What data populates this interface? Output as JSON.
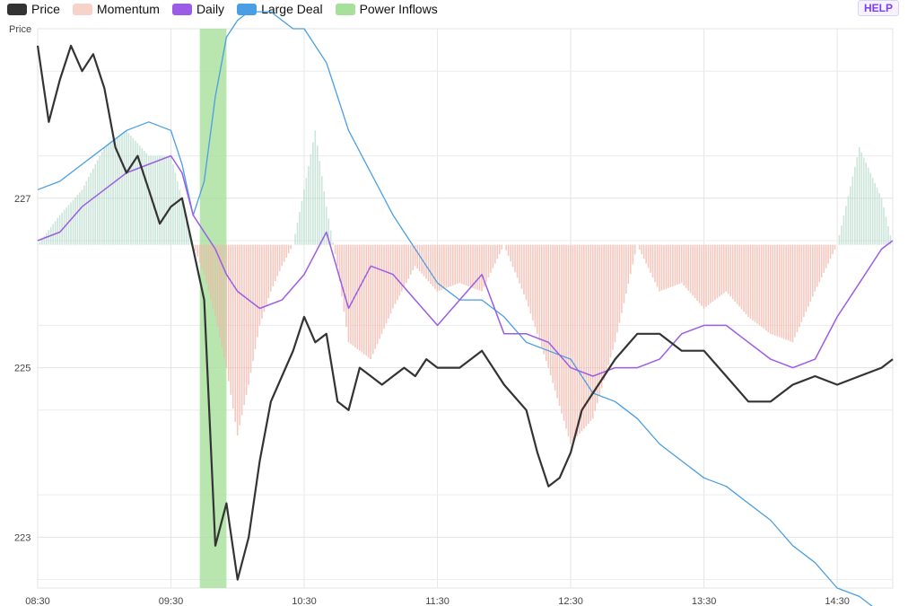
{
  "help_label": "HELP",
  "legend": [
    {
      "name": "Price",
      "color": "#333333"
    },
    {
      "name": "Momentum",
      "color": "#f6d2c8"
    },
    {
      "name": "Daily",
      "color": "#9b5de5"
    },
    {
      "name": "Large Deal",
      "color": "#4a9ee3"
    },
    {
      "name": "Power Inflows",
      "color": "#a6e09a"
    }
  ],
  "chart_data": {
    "type": "line",
    "ylabel": "Price",
    "ylim": [
      222.4,
      229.0
    ],
    "xlim": [
      "08:30",
      "14:55"
    ],
    "x_ticks": [
      "08:30",
      "09:30",
      "10:30",
      "11:30",
      "12:30",
      "13:30",
      "14:30"
    ],
    "y_ticks": [
      "223",
      "225",
      "227"
    ],
    "y_tick_values": [
      223,
      225,
      227
    ],
    "grid": true,
    "legend_position": "top-left",
    "power_inflows": [
      {
        "start": "09:43",
        "end": "09:55"
      }
    ],
    "momentum_baseline": 226.45,
    "series": [
      {
        "name": "Price",
        "color": "#333333",
        "x": [
          "08:30",
          "08:35",
          "08:40",
          "08:45",
          "08:50",
          "08:55",
          "09:00",
          "09:05",
          "09:10",
          "09:15",
          "09:20",
          "09:25",
          "09:30",
          "09:35",
          "09:40",
          "09:45",
          "09:50",
          "09:55",
          "10:00",
          "10:05",
          "10:10",
          "10:15",
          "10:20",
          "10:25",
          "10:30",
          "10:35",
          "10:40",
          "10:45",
          "10:50",
          "10:55",
          "11:00",
          "11:05",
          "11:10",
          "11:15",
          "11:20",
          "11:25",
          "11:30",
          "11:40",
          "11:50",
          "12:00",
          "12:10",
          "12:15",
          "12:20",
          "12:25",
          "12:30",
          "12:35",
          "12:40",
          "12:45",
          "12:50",
          "13:00",
          "13:10",
          "13:20",
          "13:30",
          "13:40",
          "13:50",
          "14:00",
          "14:05",
          "14:10",
          "14:20",
          "14:30",
          "14:40",
          "14:50",
          "14:55"
        ],
        "values": [
          228.8,
          227.9,
          228.4,
          228.8,
          228.5,
          228.7,
          228.3,
          227.6,
          227.3,
          227.5,
          227.1,
          226.7,
          226.9,
          227.0,
          226.4,
          225.8,
          222.9,
          223.4,
          222.5,
          223.0,
          223.9,
          224.6,
          224.9,
          225.2,
          225.6,
          225.3,
          225.4,
          224.6,
          224.5,
          225.0,
          224.9,
          224.8,
          224.9,
          225.0,
          224.9,
          225.1,
          225.0,
          225.0,
          225.2,
          224.8,
          224.5,
          224.0,
          223.6,
          223.7,
          224.0,
          224.5,
          224.7,
          224.9,
          225.1,
          225.4,
          225.4,
          225.2,
          225.2,
          224.9,
          224.6,
          224.6,
          224.7,
          224.8,
          224.9,
          224.8,
          224.9,
          225.0,
          225.1
        ]
      },
      {
        "name": "Daily",
        "color": "#9b5de5",
        "x": [
          "08:30",
          "08:40",
          "08:50",
          "09:00",
          "09:10",
          "09:20",
          "09:30",
          "09:35",
          "09:40",
          "09:45",
          "09:50",
          "09:55",
          "10:00",
          "10:10",
          "10:20",
          "10:30",
          "10:40",
          "10:50",
          "11:00",
          "11:10",
          "11:20",
          "11:30",
          "11:40",
          "11:50",
          "12:00",
          "12:10",
          "12:20",
          "12:30",
          "12:40",
          "12:50",
          "13:00",
          "13:10",
          "13:20",
          "13:30",
          "13:40",
          "13:50",
          "14:00",
          "14:10",
          "14:20",
          "14:30",
          "14:40",
          "14:50",
          "14:55"
        ],
        "values": [
          226.5,
          226.6,
          226.9,
          227.1,
          227.3,
          227.4,
          227.5,
          227.3,
          226.8,
          226.6,
          226.4,
          226.1,
          225.9,
          225.7,
          225.8,
          226.1,
          226.6,
          225.7,
          226.2,
          226.1,
          225.8,
          225.5,
          225.8,
          226.1,
          225.4,
          225.4,
          225.3,
          225.0,
          224.9,
          225.0,
          225.0,
          225.1,
          225.4,
          225.5,
          225.5,
          225.3,
          225.1,
          225.0,
          225.1,
          225.6,
          226.0,
          226.4,
          226.5
        ]
      },
      {
        "name": "Large Deal",
        "color": "#4a9ee3",
        "x": [
          "08:30",
          "08:40",
          "08:50",
          "09:00",
          "09:10",
          "09:20",
          "09:30",
          "09:35",
          "09:40",
          "09:45",
          "09:50",
          "09:55",
          "10:00",
          "10:05",
          "10:10",
          "10:15",
          "10:20",
          "10:25",
          "10:30",
          "10:35",
          "10:40",
          "10:45",
          "10:50",
          "11:00",
          "11:10",
          "11:20",
          "11:30",
          "11:40",
          "11:50",
          "12:00",
          "12:10",
          "12:20",
          "12:30",
          "12:40",
          "12:50",
          "13:00",
          "13:10",
          "13:20",
          "13:30",
          "13:40",
          "13:50",
          "14:00",
          "14:10",
          "14:20",
          "14:30",
          "14:40",
          "14:50",
          "14:55"
        ],
        "values": [
          227.1,
          227.2,
          227.4,
          227.6,
          227.8,
          227.9,
          227.8,
          227.4,
          226.8,
          227.2,
          228.2,
          228.9,
          229.1,
          229.2,
          229.2,
          229.2,
          229.1,
          229.0,
          229.0,
          228.8,
          228.6,
          228.2,
          227.8,
          227.3,
          226.8,
          226.4,
          226.0,
          225.8,
          225.8,
          225.6,
          225.3,
          225.2,
          225.1,
          224.7,
          224.6,
          224.4,
          224.1,
          223.9,
          223.7,
          223.6,
          223.4,
          223.2,
          222.9,
          222.7,
          222.4,
          222.3,
          222.1,
          222.1
        ]
      },
      {
        "name": "Momentum",
        "color": "#f6d2c8",
        "x": [
          "08:30",
          "08:40",
          "08:50",
          "09:00",
          "09:10",
          "09:20",
          "09:30",
          "09:35",
          "09:40",
          "09:45",
          "09:50",
          "09:55",
          "10:00",
          "10:05",
          "10:10",
          "10:15",
          "10:20",
          "10:25",
          "10:30",
          "10:35",
          "10:40",
          "10:45",
          "10:50",
          "11:00",
          "11:10",
          "11:20",
          "11:30",
          "11:40",
          "11:50",
          "12:00",
          "12:10",
          "12:20",
          "12:30",
          "12:40",
          "12:50",
          "13:00",
          "13:10",
          "13:20",
          "13:30",
          "13:40",
          "13:50",
          "14:00",
          "14:10",
          "14:20",
          "14:30",
          "14:40",
          "14:50",
          "14:55"
        ],
        "values": [
          226.45,
          226.8,
          227.1,
          227.6,
          227.8,
          227.5,
          227.5,
          227.0,
          226.45,
          226.1,
          225.6,
          225.0,
          224.2,
          224.8,
          225.5,
          225.9,
          226.2,
          226.45,
          227.1,
          227.8,
          226.9,
          226.2,
          225.3,
          225.1,
          225.7,
          226.2,
          225.9,
          226.0,
          225.9,
          226.45,
          225.8,
          225.0,
          224.1,
          224.4,
          225.3,
          226.45,
          225.9,
          226.0,
          225.7,
          225.9,
          225.6,
          225.4,
          225.3,
          225.9,
          226.45,
          227.6,
          227.0,
          226.45
        ]
      }
    ]
  }
}
